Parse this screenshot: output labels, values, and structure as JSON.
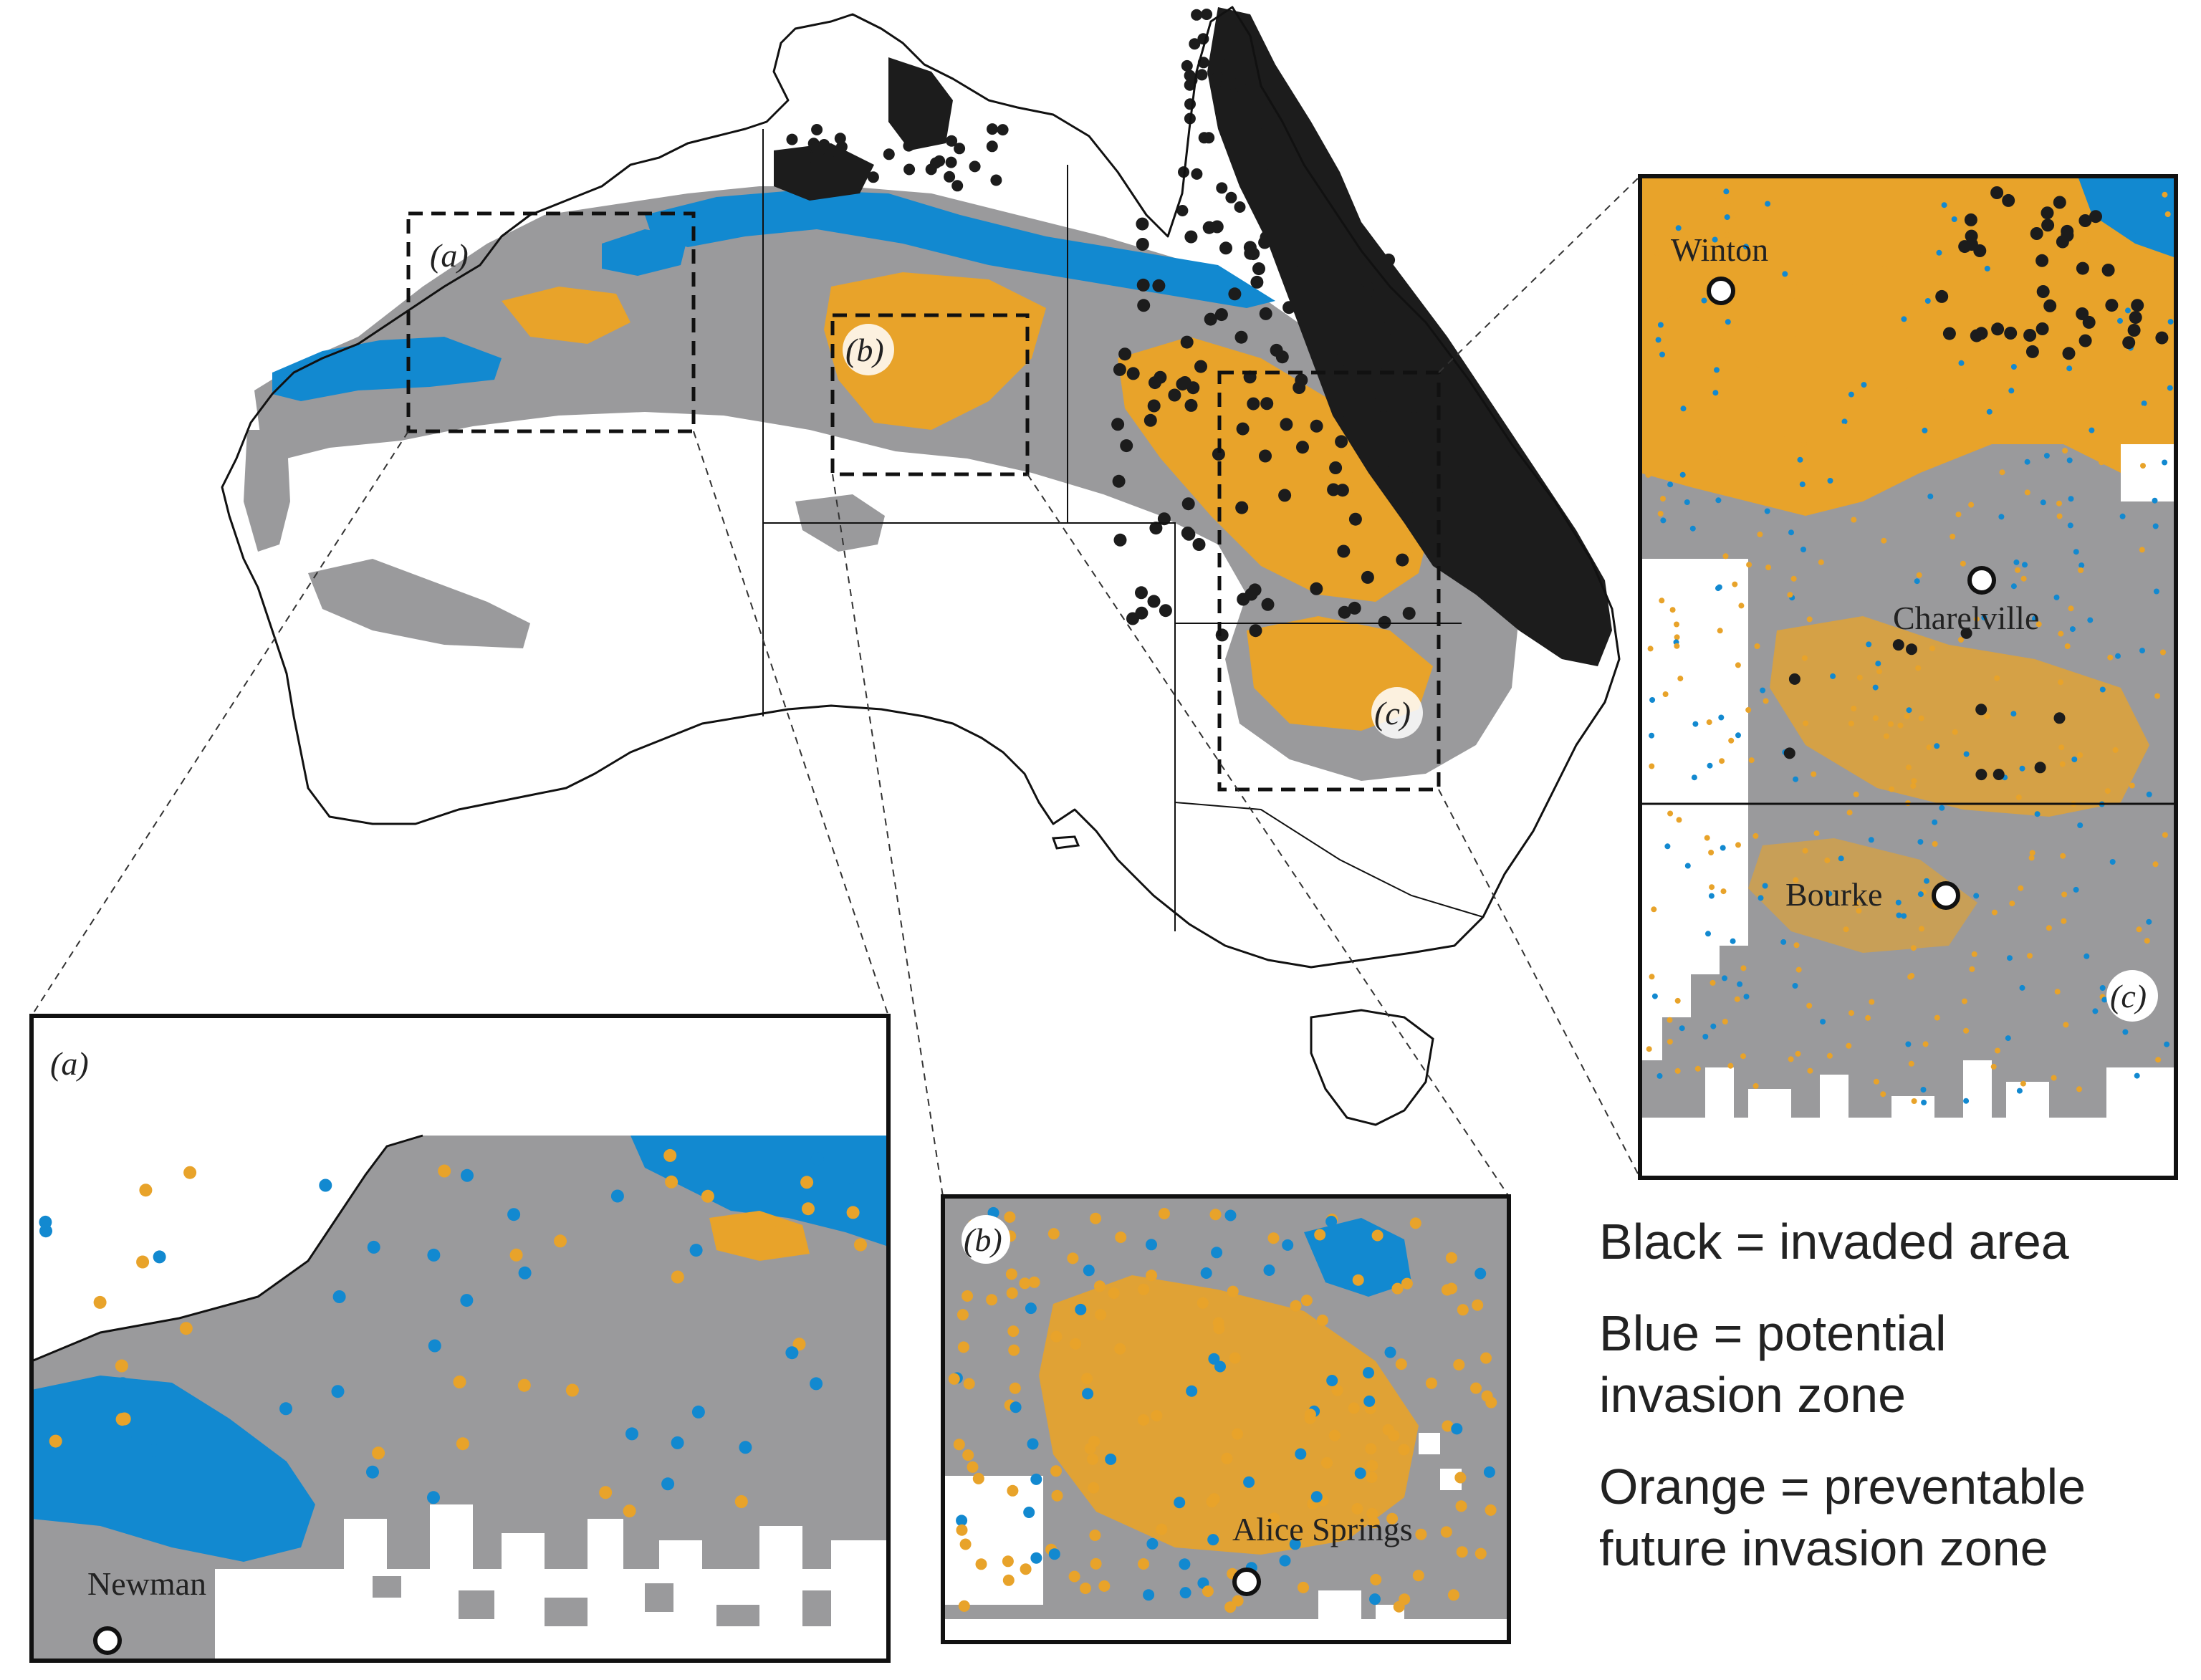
{
  "colors": {
    "invaded": "#1c1c1c",
    "potential": "#1289d0",
    "preventable": "#e8a32a",
    "suitable_range": "#9a9a9c",
    "outline": "#111111",
    "background": "#ffffff"
  },
  "main_map": {
    "panel_labels": [
      "(a)",
      "(b)",
      "(c)"
    ]
  },
  "inset_a": {
    "label": "(a)",
    "towns": [
      "Newman"
    ]
  },
  "inset_b": {
    "label": "(b)",
    "towns": [
      "Alice Springs"
    ]
  },
  "inset_c": {
    "label": "(c)",
    "towns": [
      "Winton",
      "Charelville",
      "Bourke"
    ]
  },
  "legend": {
    "black": "Black = invaded area",
    "blue_line1": "Blue = potential",
    "blue_line2": "invasion zone",
    "orange_line1": "Orange = preventable",
    "orange_line2": "future invasion zone"
  }
}
